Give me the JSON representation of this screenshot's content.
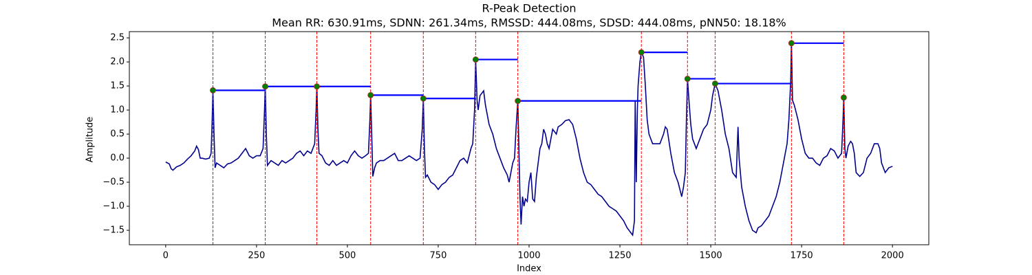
{
  "chart_data": {
    "type": "line",
    "title": "R-Peak Detection",
    "subtitle": "Mean RR: 630.91ms, SDNN: 261.34ms, RMSSD: 444.08ms, SDSD: 444.08ms, pNN50: 18.18%",
    "xlabel": "Index",
    "ylabel": "Amplitude",
    "x": [
      0,
      10,
      15,
      20,
      30,
      40,
      50,
      60,
      70,
      80,
      85,
      90,
      95,
      100,
      110,
      120,
      125,
      128,
      130,
      133,
      136,
      140,
      150,
      160,
      170,
      180,
      190,
      200,
      210,
      220,
      230,
      240,
      250,
      260,
      268,
      272,
      274,
      277,
      280,
      290,
      300,
      310,
      320,
      330,
      340,
      350,
      360,
      370,
      380,
      390,
      400,
      410,
      414,
      416,
      419,
      422,
      430,
      440,
      450,
      460,
      470,
      480,
      490,
      500,
      510,
      520,
      530,
      540,
      550,
      558,
      562,
      564,
      567,
      570,
      575,
      580,
      590,
      600,
      610,
      620,
      630,
      640,
      650,
      660,
      670,
      680,
      690,
      700,
      706,
      709,
      712,
      715,
      720,
      730,
      740,
      750,
      760,
      770,
      780,
      790,
      800,
      810,
      820,
      830,
      840,
      845,
      850,
      853,
      857,
      860,
      865,
      870,
      875,
      880,
      890,
      900,
      910,
      920,
      930,
      940,
      945,
      950,
      955,
      960,
      964,
      969,
      972,
      975,
      978,
      982,
      986,
      990,
      995,
      1000,
      1005,
      1010,
      1015,
      1020,
      1025,
      1030,
      1035,
      1040,
      1045,
      1050,
      1055,
      1060,
      1065,
      1070,
      1075,
      1080,
      1090,
      1100,
      1110,
      1120,
      1130,
      1140,
      1150,
      1160,
      1170,
      1180,
      1190,
      1200,
      1210,
      1220,
      1230,
      1240,
      1250,
      1260,
      1270,
      1280,
      1285,
      1290,
      1292,
      1295,
      1298,
      1300,
      1305,
      1309,
      1315,
      1320,
      1325,
      1330,
      1340,
      1350,
      1360,
      1370,
      1375,
      1380,
      1390,
      1400,
      1410,
      1420,
      1425,
      1430,
      1433,
      1436,
      1440,
      1445,
      1450,
      1460,
      1470,
      1480,
      1490,
      1500,
      1505,
      1512,
      1520,
      1530,
      1540,
      1550,
      1560,
      1570,
      1575,
      1578,
      1585,
      1595,
      1605,
      1615,
      1625,
      1630,
      1640,
      1650,
      1660,
      1670,
      1680,
      1690,
      1700,
      1710,
      1715,
      1720,
      1722,
      1725,
      1730,
      1740,
      1750,
      1760,
      1770,
      1780,
      1790,
      1800,
      1810,
      1820,
      1830,
      1840,
      1850,
      1860,
      1864,
      1866,
      1869,
      1872,
      1878,
      1885,
      1890,
      1895,
      1900,
      1910,
      1920,
      1930,
      1940,
      1950,
      1960,
      1965,
      1970,
      1980,
      1990,
      2000
    ],
    "series": [
      {
        "color": "#00008b",
        "values": [
          -0.08,
          -0.12,
          -0.22,
          -0.25,
          -0.18,
          -0.15,
          -0.1,
          -0.02,
          0.05,
          0.15,
          0.25,
          0.18,
          0.0,
          0.0,
          -0.02,
          0.0,
          0.1,
          0.8,
          1.41,
          0.5,
          -0.2,
          -0.1,
          -0.15,
          -0.2,
          -0.12,
          -0.1,
          -0.05,
          0.0,
          0.1,
          0.2,
          0.05,
          0.0,
          0.05,
          0.05,
          0.2,
          1.0,
          1.49,
          0.5,
          -0.15,
          -0.05,
          -0.1,
          -0.15,
          -0.05,
          -0.1,
          -0.05,
          0.0,
          0.1,
          0.15,
          0.05,
          0.15,
          0.1,
          0.3,
          1.0,
          1.49,
          0.6,
          0.1,
          0.05,
          -0.1,
          -0.15,
          -0.05,
          -0.15,
          -0.1,
          -0.05,
          -0.1,
          0.05,
          0.15,
          0.05,
          0.0,
          0.05,
          0.1,
          0.8,
          1.31,
          0.5,
          -0.38,
          -0.2,
          -0.1,
          -0.05,
          -0.05,
          0.0,
          0.05,
          0.1,
          -0.05,
          -0.05,
          0.0,
          0.05,
          0.0,
          -0.05,
          0.0,
          0.6,
          1.24,
          0.2,
          -0.4,
          -0.35,
          -0.5,
          -0.55,
          -0.65,
          -0.55,
          -0.5,
          -0.4,
          -0.35,
          -0.2,
          -0.05,
          0.0,
          -0.1,
          0.2,
          0.3,
          1.0,
          2.05,
          1.2,
          1.0,
          1.3,
          1.35,
          1.4,
          1.1,
          0.7,
          0.5,
          0.2,
          0.0,
          -0.2,
          -0.35,
          -0.5,
          -0.3,
          -0.1,
          0.0,
          0.6,
          1.19,
          0.2,
          -0.8,
          -1.38,
          -0.8,
          -1.0,
          -0.85,
          -0.9,
          -0.5,
          -0.3,
          -0.85,
          -0.9,
          -0.4,
          -0.1,
          0.2,
          0.3,
          0.6,
          0.5,
          0.3,
          0.2,
          0.4,
          0.6,
          0.55,
          0.5,
          0.65,
          0.7,
          0.78,
          0.8,
          0.7,
          0.4,
          0.0,
          -0.3,
          -0.5,
          -0.55,
          -0.65,
          -0.75,
          -0.8,
          -0.9,
          -1.0,
          -1.05,
          -1.1,
          -1.2,
          -1.3,
          -1.45,
          -1.55,
          -1.6,
          -1.3,
          1.2,
          -0.5,
          1.0,
          1.5,
          2.0,
          2.2,
          2.1,
          1.5,
          0.8,
          0.5,
          0.3,
          0.3,
          0.3,
          0.5,
          0.65,
          0.6,
          0.1,
          -0.3,
          -0.5,
          -0.8,
          -0.6,
          -0.3,
          0.8,
          1.65,
          1.2,
          0.7,
          0.4,
          0.2,
          0.4,
          0.6,
          0.7,
          1.0,
          1.3,
          1.55,
          1.4,
          1.0,
          0.5,
          0.2,
          -0.3,
          -0.4,
          0.65,
          0.0,
          -0.6,
          -1.0,
          -1.3,
          -1.5,
          -1.55,
          -1.45,
          -1.4,
          -1.3,
          -1.2,
          -1.0,
          -0.8,
          -0.5,
          -0.1,
          0.3,
          0.8,
          1.6,
          2.39,
          1.2,
          1.1,
          0.8,
          0.4,
          0.1,
          0.0,
          0.0,
          -0.1,
          -0.15,
          0.0,
          0.05,
          0.2,
          0.15,
          0.0,
          0.1,
          0.8,
          1.26,
          0.2,
          0.0,
          0.25,
          0.35,
          0.3,
          0.1,
          -0.3,
          -0.38,
          -0.3,
          0.0,
          0.1,
          0.3,
          0.3,
          0.2,
          -0.1,
          -0.3,
          -0.2,
          -0.17
        ]
      }
    ],
    "peaks": {
      "x": [
        130,
        274,
        416,
        564,
        709,
        853,
        969,
        1309,
        1436,
        1512,
        1722,
        1866
      ],
      "values": [
        1.41,
        1.49,
        1.49,
        1.31,
        1.24,
        2.05,
        1.19,
        2.2,
        1.65,
        1.55,
        2.39,
        1.26
      ],
      "color": "#008000",
      "edge_color": "#b22222",
      "marker_line_color": "#ff0000",
      "interval_color": "#0000ff"
    },
    "xlim": [
      -100,
      2100
    ],
    "ylim": [
      -1.8,
      2.63
    ],
    "xticks": [
      0,
      250,
      500,
      750,
      1000,
      1250,
      1500,
      1750,
      2000
    ],
    "yticks": [
      {
        "value": -1.5,
        "label": "−1.5"
      },
      {
        "value": -1.0,
        "label": "−1.0"
      },
      {
        "value": -0.5,
        "label": "−0.5"
      },
      {
        "value": 0,
        "label": "0.0"
      },
      0.5,
      {
        "value": 1.0,
        "label": "1.0"
      },
      1.5,
      {
        "value": 2.0,
        "label": "2.0"
      },
      2.5
    ],
    "grid": false
  }
}
